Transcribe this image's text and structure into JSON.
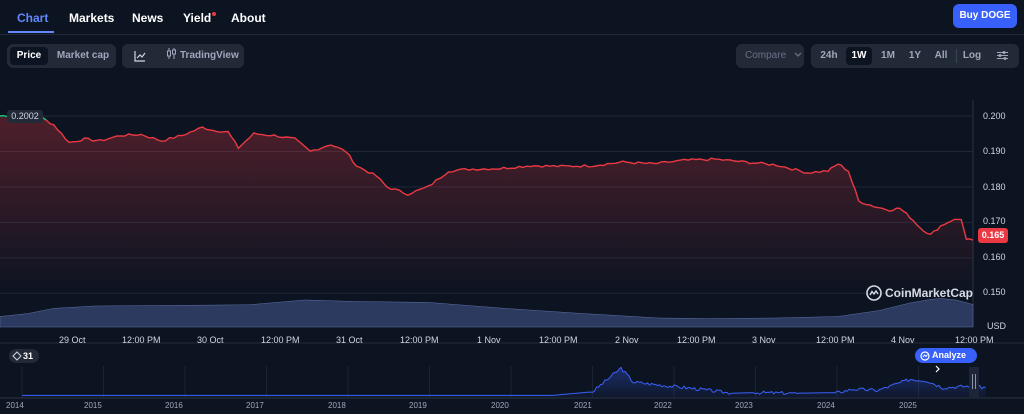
{
  "nav": {
    "tabs": [
      {
        "label": "Chart",
        "active": true
      },
      {
        "label": "Markets"
      },
      {
        "label": "News"
      },
      {
        "label": "Yield"
      },
      {
        "label": "About"
      }
    ],
    "buy_label": "Buy DOGE"
  },
  "toolbar": {
    "type_options": [
      "Price",
      "Market cap"
    ],
    "type_selected": "Price",
    "tradingview_label": "TradingView",
    "compare_label": "Compare",
    "ranges": [
      "24h",
      "1W",
      "1M",
      "1Y",
      "All",
      "Log"
    ],
    "range_selected": "1W"
  },
  "colors": {
    "background": "#0d1421",
    "accent": "#3861fb",
    "price_line": "#ea3943",
    "start_marker": "#16c784",
    "volume": "#3b4a7a"
  },
  "watermark": "CoinMarketCap",
  "badges": {
    "start_price": "0.2002",
    "current_price": "0.165"
  },
  "chart_data": {
    "type": "line",
    "y_ticks": [
      "0.200",
      "0.190",
      "0.180",
      "0.170",
      "0.160",
      "0.150"
    ],
    "y_unit": "USD",
    "ylim": [
      0.1435,
      0.2045
    ],
    "x_ticks": [
      "29 Oct",
      "12:00 PM",
      "30 Oct",
      "12:00 PM",
      "31 Oct",
      "12:00 PM",
      "1 Nov",
      "12:00 PM",
      "2 Nov",
      "12:00 PM",
      "3 Nov",
      "12:00 PM",
      "4 Nov",
      "12:00 PM"
    ],
    "x_range_hours": [
      -13.5,
      176.3
    ],
    "grid": true,
    "series": [
      {
        "values": [
          [
            -13.5,
            0.2
          ],
          [
            -9,
            0.2002
          ],
          [
            -6,
            0.2001
          ],
          [
            -3,
            0.1975
          ],
          [
            0,
            0.1925
          ],
          [
            3,
            0.1935
          ],
          [
            6,
            0.193
          ],
          [
            10,
            0.1945
          ],
          [
            14,
            0.1948
          ],
          [
            18,
            0.193
          ],
          [
            22,
            0.1945
          ],
          [
            26,
            0.1968
          ],
          [
            28,
            0.196
          ],
          [
            31,
            0.1955
          ],
          [
            33,
            0.191
          ],
          [
            36,
            0.195
          ],
          [
            40,
            0.1945
          ],
          [
            44,
            0.1935
          ],
          [
            47,
            0.19
          ],
          [
            51,
            0.192
          ],
          [
            54,
            0.19
          ],
          [
            56,
            0.186
          ],
          [
            60,
            0.183
          ],
          [
            62,
            0.18
          ],
          [
            66,
            0.178
          ],
          [
            70,
            0.18
          ],
          [
            74,
            0.1845
          ],
          [
            78,
            0.185
          ],
          [
            84,
            0.1852
          ],
          [
            90,
            0.186
          ],
          [
            96,
            0.1858
          ],
          [
            102,
            0.186
          ],
          [
            108,
            0.187
          ],
          [
            114,
            0.1865
          ],
          [
            120,
            0.1875
          ],
          [
            126,
            0.1878
          ],
          [
            132,
            0.187
          ],
          [
            138,
            0.1862
          ],
          [
            144,
            0.184
          ],
          [
            148,
            0.1845
          ],
          [
            150,
            0.1865
          ],
          [
            152,
            0.1845
          ],
          [
            154,
            0.176
          ],
          [
            157,
            0.1745
          ],
          [
            160,
            0.1735
          ],
          [
            162,
            0.174
          ],
          [
            164,
            0.1715
          ],
          [
            166,
            0.1685
          ],
          [
            168,
            0.1665
          ],
          [
            170,
            0.169
          ],
          [
            172,
            0.1705
          ],
          [
            174,
            0.171
          ],
          [
            175,
            0.165
          ],
          [
            176.3,
            0.165
          ]
        ]
      }
    ],
    "volume": [
      [
        -13.5,
        0.35
      ],
      [
        -8,
        0.45
      ],
      [
        -3,
        0.62
      ],
      [
        5,
        0.7
      ],
      [
        20,
        0.72
      ],
      [
        35,
        0.74
      ],
      [
        46,
        0.9
      ],
      [
        56,
        0.85
      ],
      [
        70,
        0.82
      ],
      [
        85,
        0.62
      ],
      [
        100,
        0.45
      ],
      [
        115,
        0.3
      ],
      [
        125,
        0.28
      ],
      [
        138,
        0.3
      ],
      [
        150,
        0.35
      ],
      [
        158,
        0.55
      ],
      [
        164,
        0.8
      ],
      [
        168,
        0.92
      ],
      [
        170,
        0.95
      ],
      [
        173,
        0.9
      ],
      [
        176.3,
        0.75
      ]
    ]
  },
  "navigator": {
    "range_days": "31",
    "analyze_label": "Analyze",
    "years": [
      "2014",
      "2015",
      "2016",
      "2017",
      "2018",
      "2019",
      "2020",
      "2021",
      "2022",
      "2023",
      "2024",
      "2025"
    ],
    "price_history": [
      [
        2014.0,
        0.2
      ],
      [
        2020.5,
        0.2
      ],
      [
        2021.0,
        1.5
      ],
      [
        2021.35,
        10.0
      ],
      [
        2021.5,
        5.0
      ],
      [
        2021.8,
        4.0
      ],
      [
        2022.3,
        2.5
      ],
      [
        2022.7,
        1.0
      ],
      [
        2023.0,
        1.2
      ],
      [
        2023.5,
        1.0
      ],
      [
        2024.0,
        1.2
      ],
      [
        2024.2,
        2.5
      ],
      [
        2024.5,
        2.0
      ],
      [
        2024.9,
        6.0
      ],
      [
        2025.1,
        5.5
      ],
      [
        2025.3,
        3.0
      ],
      [
        2025.6,
        3.5
      ],
      [
        2025.85,
        3.0
      ]
    ]
  }
}
